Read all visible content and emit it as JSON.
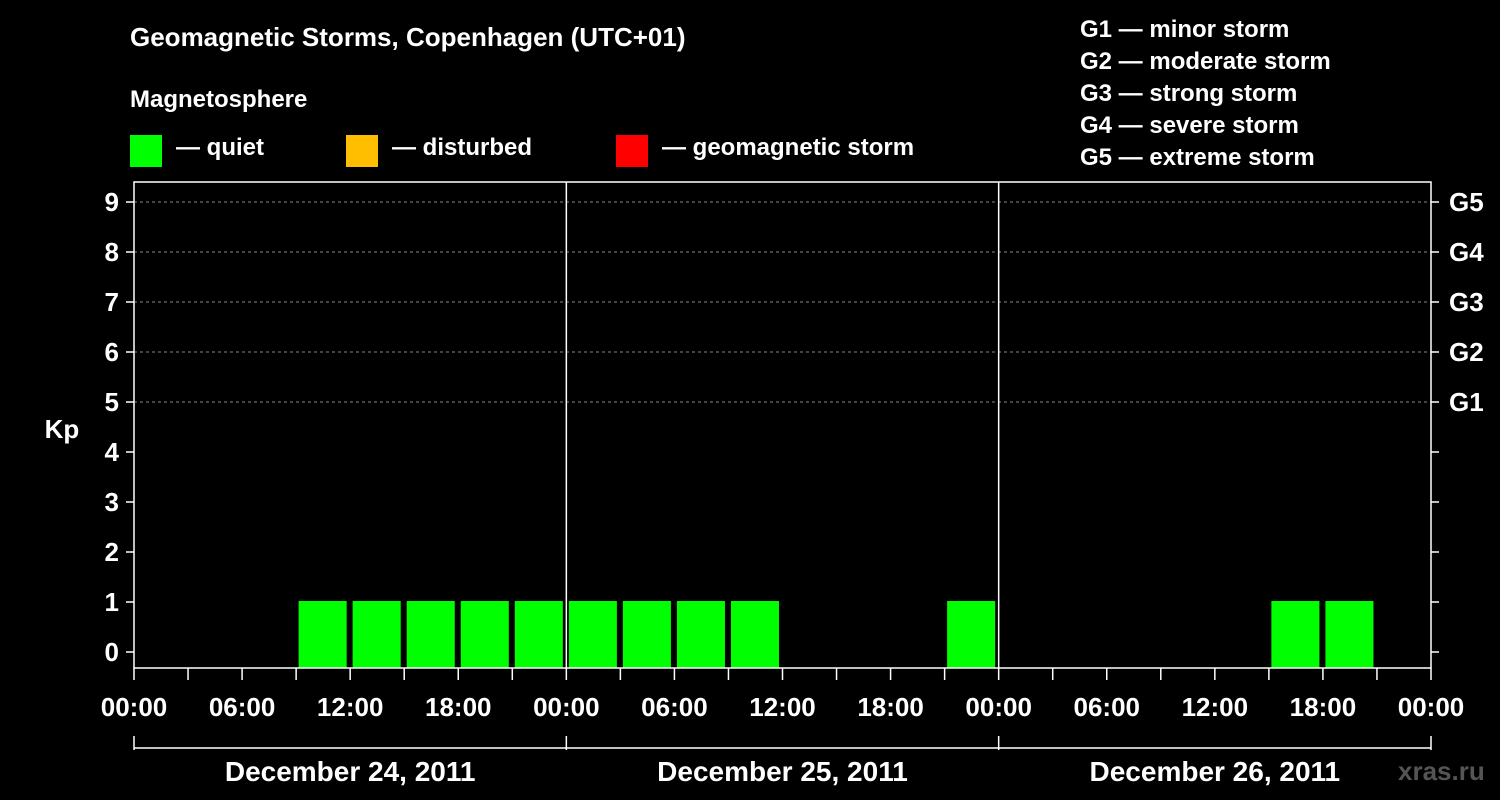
{
  "header": {
    "title": "Geomagnetic Storms, Copenhagen (UTC+01)",
    "subtitle": "Magnetosphere"
  },
  "legend": [
    {
      "label": "— quiet",
      "color": "#00ff00"
    },
    {
      "label": "— disturbed",
      "color": "#ffbf00"
    },
    {
      "label": "— geomagnetic storm",
      "color": "#ff0000"
    }
  ],
  "storm_scale": [
    "G1 — minor storm",
    "G2 — moderate storm",
    "G3 — strong storm",
    "G4 — severe storm",
    "G5 — extreme storm"
  ],
  "watermark": "xras.ru",
  "chart_data": {
    "type": "bar",
    "ylabel": "Kp",
    "ylim": [
      0,
      9
    ],
    "y_ticks": [
      0,
      1,
      2,
      3,
      4,
      5,
      6,
      7,
      8,
      9
    ],
    "right_axis_labels": [
      {
        "kp": 5,
        "label": "G1"
      },
      {
        "kp": 6,
        "label": "G2"
      },
      {
        "kp": 7,
        "label": "G3"
      },
      {
        "kp": 8,
        "label": "G4"
      },
      {
        "kp": 9,
        "label": "G5"
      }
    ],
    "x_tick_labels": [
      "00:00",
      "06:00",
      "12:00",
      "18:00",
      "00:00",
      "06:00",
      "12:00",
      "18:00",
      "00:00",
      "06:00",
      "12:00",
      "18:00",
      "00:00"
    ],
    "days": [
      "December 24, 2011",
      "December 25, 2011",
      "December 26, 2011"
    ],
    "interval_hours": 3,
    "colors": {
      "quiet": "#00ff00",
      "disturbed": "#ffbf00",
      "storm": "#ff0000"
    },
    "series": [
      {
        "values": [
          0,
          0,
          0,
          1,
          1,
          1,
          1,
          1,
          1,
          1,
          1,
          1,
          0,
          0,
          0,
          1,
          0,
          0,
          0,
          0,
          0,
          1,
          1,
          0
        ]
      }
    ]
  }
}
